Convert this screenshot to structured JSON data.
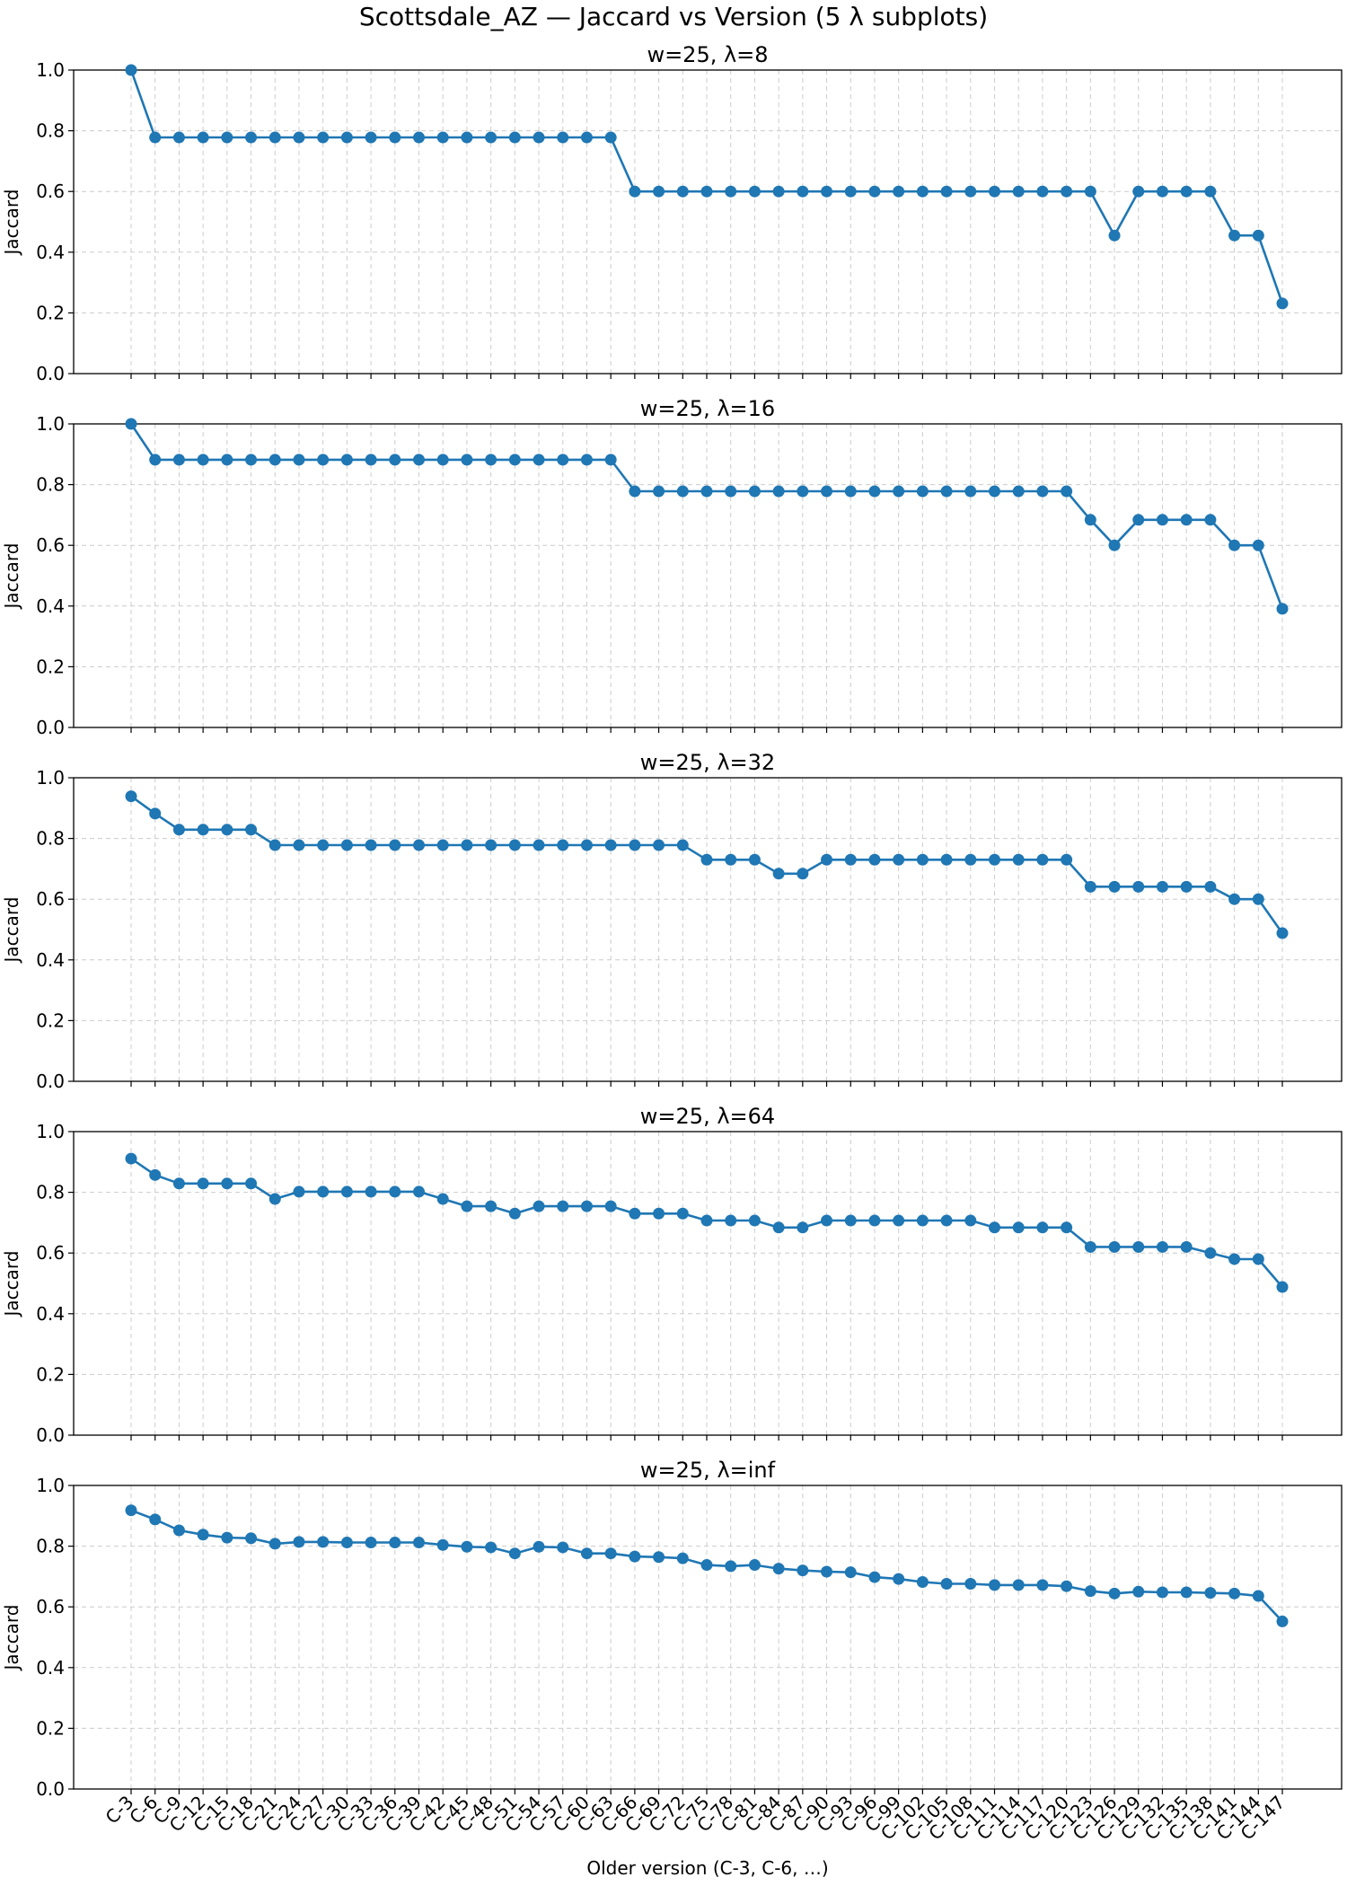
{
  "title": "Scottsdale_AZ — Jaccard vs Version (5 λ subplots)",
  "chart_data": {
    "type": "line",
    "x": [
      "C-3",
      "C-6",
      "C-9",
      "C-12",
      "C-15",
      "C-18",
      "C-21",
      "C-24",
      "C-27",
      "C-30",
      "C-33",
      "C-36",
      "C-39",
      "C-42",
      "C-45",
      "C-48",
      "C-51",
      "C-54",
      "C-57",
      "C-60",
      "C-63",
      "C-66",
      "C-69",
      "C-72",
      "C-75",
      "C-78",
      "C-81",
      "C-84",
      "C-87",
      "C-90",
      "C-93",
      "C-96",
      "C-99",
      "C-102",
      "C-105",
      "C-108",
      "C-111",
      "C-114",
      "C-117",
      "C-120",
      "C-123",
      "C-126",
      "C-129",
      "C-132",
      "C-135",
      "C-138",
      "C-141",
      "C-144",
      "C-147"
    ],
    "xlabel": "Older version (C-3, C-6, …)",
    "ylabel": "Jaccard",
    "ylim": [
      0,
      1.0
    ],
    "yticks": [
      "0.0",
      "0.2",
      "0.4",
      "0.6",
      "0.8",
      "1.0"
    ],
    "grid": true,
    "color": "#1f77b4",
    "subplots": [
      {
        "title": "w=25, λ=8",
        "values": [
          1.0,
          0.778,
          0.778,
          0.778,
          0.778,
          0.778,
          0.778,
          0.778,
          0.778,
          0.778,
          0.778,
          0.778,
          0.778,
          0.778,
          0.778,
          0.778,
          0.778,
          0.778,
          0.778,
          0.778,
          0.778,
          0.6,
          0.6,
          0.6,
          0.6,
          0.6,
          0.6,
          0.6,
          0.6,
          0.6,
          0.6,
          0.6,
          0.6,
          0.6,
          0.6,
          0.6,
          0.6,
          0.6,
          0.6,
          0.6,
          0.6,
          0.455,
          0.6,
          0.6,
          0.6,
          0.6,
          0.455,
          0.455,
          0.231
        ]
      },
      {
        "title": "w=25, λ=16",
        "values": [
          1.0,
          0.882,
          0.882,
          0.882,
          0.882,
          0.882,
          0.882,
          0.882,
          0.882,
          0.882,
          0.882,
          0.882,
          0.882,
          0.882,
          0.882,
          0.882,
          0.882,
          0.882,
          0.882,
          0.882,
          0.882,
          0.778,
          0.778,
          0.778,
          0.778,
          0.778,
          0.778,
          0.778,
          0.778,
          0.778,
          0.778,
          0.778,
          0.778,
          0.778,
          0.778,
          0.778,
          0.778,
          0.778,
          0.778,
          0.778,
          0.684,
          0.6,
          0.684,
          0.684,
          0.684,
          0.684,
          0.6,
          0.6,
          0.391
        ]
      },
      {
        "title": "w=25, λ=32",
        "values": [
          0.939,
          0.882,
          0.829,
          0.829,
          0.829,
          0.829,
          0.778,
          0.778,
          0.778,
          0.778,
          0.778,
          0.778,
          0.778,
          0.778,
          0.778,
          0.778,
          0.778,
          0.778,
          0.778,
          0.778,
          0.778,
          0.778,
          0.778,
          0.778,
          0.73,
          0.73,
          0.73,
          0.684,
          0.684,
          0.73,
          0.73,
          0.73,
          0.73,
          0.73,
          0.73,
          0.73,
          0.73,
          0.73,
          0.73,
          0.73,
          0.641,
          0.641,
          0.641,
          0.641,
          0.641,
          0.641,
          0.6,
          0.6,
          0.488
        ]
      },
      {
        "title": "w=25, λ=64",
        "values": [
          0.911,
          0.857,
          0.829,
          0.829,
          0.829,
          0.829,
          0.778,
          0.802,
          0.802,
          0.802,
          0.802,
          0.802,
          0.802,
          0.778,
          0.754,
          0.754,
          0.73,
          0.754,
          0.754,
          0.754,
          0.754,
          0.73,
          0.73,
          0.73,
          0.707,
          0.707,
          0.707,
          0.684,
          0.684,
          0.707,
          0.707,
          0.707,
          0.707,
          0.707,
          0.707,
          0.707,
          0.684,
          0.684,
          0.684,
          0.684,
          0.62,
          0.62,
          0.62,
          0.62,
          0.62,
          0.6,
          0.58,
          0.58,
          0.488
        ]
      },
      {
        "title": "w=25, λ=inf",
        "values": [
          0.918,
          0.888,
          0.852,
          0.838,
          0.828,
          0.826,
          0.808,
          0.814,
          0.814,
          0.812,
          0.812,
          0.812,
          0.812,
          0.804,
          0.798,
          0.796,
          0.776,
          0.798,
          0.796,
          0.776,
          0.776,
          0.766,
          0.764,
          0.76,
          0.738,
          0.734,
          0.738,
          0.726,
          0.72,
          0.716,
          0.714,
          0.698,
          0.692,
          0.682,
          0.676,
          0.676,
          0.672,
          0.672,
          0.672,
          0.668,
          0.652,
          0.644,
          0.65,
          0.648,
          0.648,
          0.646,
          0.644,
          0.636,
          0.552
        ]
      }
    ]
  }
}
